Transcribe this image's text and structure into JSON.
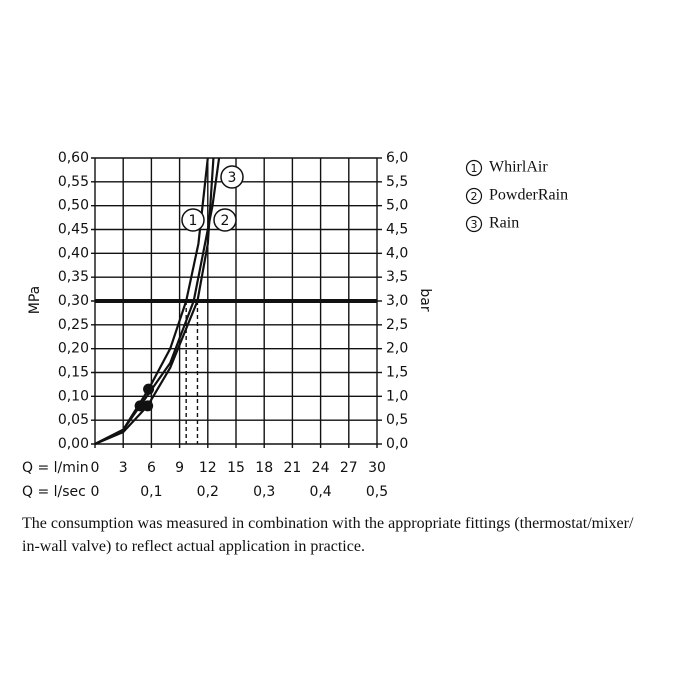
{
  "chart_data": {
    "type": "line",
    "y_label": "MPa",
    "y2_label": "bar",
    "x_label": "Q = l/min",
    "x2_label": "Q = l/sec",
    "xlim": [
      0,
      30
    ],
    "xticks": [
      0,
      3,
      6,
      9,
      12,
      15,
      18,
      21,
      24,
      27,
      30
    ],
    "x2lim": [
      0,
      0.5
    ],
    "x2ticks": [
      {
        "value": 0,
        "label": "0"
      },
      {
        "value": 0.1,
        "label": "0,1"
      },
      {
        "value": 0.2,
        "label": "0,2"
      },
      {
        "value": 0.3,
        "label": "0,3"
      },
      {
        "value": 0.4,
        "label": "0,4"
      },
      {
        "value": 0.5,
        "label": "0,5"
      }
    ],
    "ylim": [
      0,
      0.6
    ],
    "yticks": [
      {
        "value": 0,
        "label": "0,00"
      },
      {
        "value": 0.05,
        "label": "0,05"
      },
      {
        "value": 0.1,
        "label": "0,10"
      },
      {
        "value": 0.15,
        "label": "0,15"
      },
      {
        "value": 0.2,
        "label": "0,20"
      },
      {
        "value": 0.25,
        "label": "0,25"
      },
      {
        "value": 0.3,
        "label": "0,30"
      },
      {
        "value": 0.35,
        "label": "0,35"
      },
      {
        "value": 0.4,
        "label": "0,40"
      },
      {
        "value": 0.45,
        "label": "0,45"
      },
      {
        "value": 0.5,
        "label": "0,50"
      },
      {
        "value": 0.55,
        "label": "0,55"
      },
      {
        "value": 0.6,
        "label": "0,60"
      }
    ],
    "y2lim": [
      0,
      6
    ],
    "y2ticks": [
      {
        "value": 0,
        "label": "0,0"
      },
      {
        "value": 0.5,
        "label": "0,5"
      },
      {
        "value": 1,
        "label": "1,0"
      },
      {
        "value": 1.5,
        "label": "1,5"
      },
      {
        "value": 2,
        "label": "2,0"
      },
      {
        "value": 2.5,
        "label": "2,5"
      },
      {
        "value": 3,
        "label": "3,0"
      },
      {
        "value": 3.5,
        "label": "3,5"
      },
      {
        "value": 4,
        "label": "4,0"
      },
      {
        "value": 4.5,
        "label": "4,5"
      },
      {
        "value": 5,
        "label": "5,0"
      },
      {
        "value": 5.5,
        "label": "5,5"
      },
      {
        "value": 6,
        "label": "6,0"
      }
    ],
    "grid": true,
    "color": "#111111",
    "reference_y": 0.3,
    "series": [
      {
        "name": "WhirlAir",
        "marker_label": "1",
        "x": [
          0,
          3,
          5.7,
          8,
          9.7,
          11,
          12
        ],
        "values": [
          0,
          0.03,
          0.115,
          0.2,
          0.3,
          0.42,
          0.6
        ]
      },
      {
        "name": "PowderRain",
        "marker_label": "2",
        "x": [
          0,
          3,
          5.6,
          8,
          10.9,
          12,
          12.6
        ],
        "values": [
          0,
          0.025,
          0.08,
          0.16,
          0.3,
          0.42,
          0.6
        ]
      },
      {
        "name": "Rain",
        "marker_label": "3",
        "x": [
          0,
          3,
          4.8,
          8,
          10.5,
          12.5,
          13.2
        ],
        "values": [
          0,
          0.03,
          0.08,
          0.17,
          0.3,
          0.5,
          0.6
        ]
      }
    ],
    "highlight_points": [
      {
        "x": 5.7,
        "y": 0.115
      },
      {
        "x": 5.6,
        "y": 0.08
      },
      {
        "x": 4.8,
        "y": 0.08
      }
    ],
    "note": [
      "The consumption was measured in combination with the appropriate fittings (thermostat/mixer/",
      "in-wall valve) to reflect actual application in practice."
    ]
  }
}
